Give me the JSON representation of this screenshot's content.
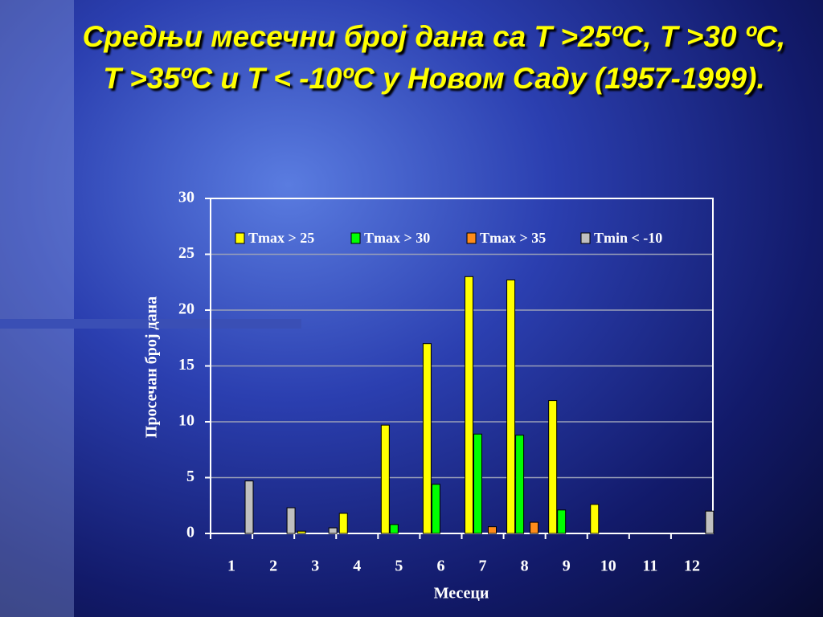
{
  "chart_data": {
    "type": "bar",
    "title": "Средњи месечни број дана са T >25ºC, T >30 ºC, T >35ºC и T < -10ºC у Новом Саду (1957-1999).",
    "x_label": "Месеци",
    "y_label": "Просечан број дана",
    "categories": [
      "1",
      "2",
      "3",
      "4",
      "5",
      "6",
      "7",
      "8",
      "9",
      "10",
      "11",
      "12"
    ],
    "series": [
      {
        "name": "Tmax > 25",
        "color": "#ffff00",
        "values": [
          0,
          0,
          0.2,
          1.8,
          9.7,
          17,
          23,
          22.7,
          11.9,
          2.6,
          0,
          0
        ]
      },
      {
        "name": "Tmax > 30",
        "color": "#00ff00",
        "values": [
          0,
          0,
          0,
          0,
          0.8,
          4.4,
          8.9,
          8.8,
          2.1,
          0,
          0,
          0
        ]
      },
      {
        "name": "Tmax > 35",
        "color": "#ff8c1a",
        "values": [
          0,
          0,
          0,
          0,
          0,
          0,
          0.6,
          1,
          0,
          0,
          0,
          0
        ]
      },
      {
        "name": "Tmin < -10",
        "color": "#c0c0c0",
        "values": [
          4.7,
          2.3,
          0.5,
          0,
          0,
          0,
          0,
          0,
          0,
          0,
          0,
          2.0
        ]
      }
    ],
    "ylim": [
      0,
      30
    ],
    "yticks": [
      0,
      5,
      10,
      15,
      20,
      25,
      30
    ],
    "grid": true,
    "legend": "top"
  }
}
